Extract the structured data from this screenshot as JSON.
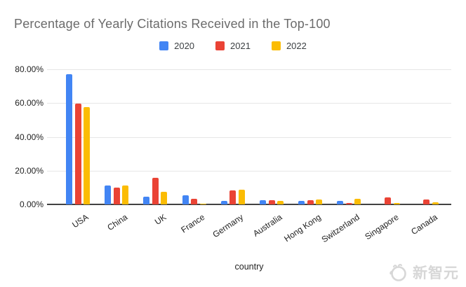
{
  "title": "Percentage of Yearly Citations Received in the Top-100",
  "watermark": {
    "text": "新智元",
    "icon": "bird-logo-icon",
    "color": "#d7d7d7"
  },
  "colors": {
    "title": "#6b6b6b",
    "axis_label": "#222222",
    "grid": "#e6e6e6",
    "baseline": "#424242",
    "series_2020": "#4285F4",
    "series_2021": "#EA4335",
    "series_2022": "#FBBC04"
  },
  "chart_data": {
    "type": "bar",
    "title": "Percentage of Yearly Citations Received in the Top-100",
    "xlabel": "country",
    "ylabel": "",
    "ylim": [
      0,
      80
    ],
    "grid": true,
    "legend_position": "top",
    "categories": [
      "USA",
      "China",
      "UK",
      "France",
      "Germany",
      "Australia",
      "Hong Kong",
      "Switzerland",
      "Singapore",
      "Canada"
    ],
    "series": [
      {
        "name": "2020",
        "color": "#4285F4",
        "values": [
          77.0,
          11.0,
          4.6,
          5.6,
          1.9,
          2.3,
          2.2,
          2.0,
          0,
          0
        ]
      },
      {
        "name": "2021",
        "color": "#EA4335",
        "values": [
          59.5,
          9.8,
          15.6,
          3.3,
          8.4,
          2.5,
          2.3,
          0.9,
          4.0,
          2.9
        ]
      },
      {
        "name": "2022",
        "color": "#FBBC04",
        "values": [
          57.5,
          11.0,
          7.4,
          0.6,
          8.7,
          1.9,
          3.0,
          3.5,
          1.0,
          1.3
        ]
      }
    ],
    "yticks": [
      {
        "value": 0,
        "label": "0.00%"
      },
      {
        "value": 20,
        "label": "20.00%"
      },
      {
        "value": 40,
        "label": "40.00%"
      },
      {
        "value": 60,
        "label": "60.00%"
      },
      {
        "value": 80,
        "label": "80.00%"
      }
    ]
  }
}
